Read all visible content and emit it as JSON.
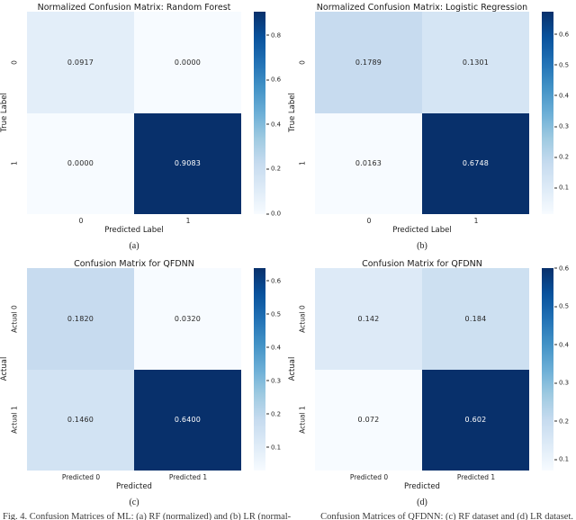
{
  "figure": {
    "bottom_caption_left": "Fig. 4. Confusion Matrices of ML: (a) RF (normalized) and (b) LR (normal-",
    "bottom_caption_right": "Confusion Matrices of QFDNN: (c) RF dataset and (d) LR dataset."
  },
  "colors": {
    "background": "#ffffff",
    "cmap_name": "Blues",
    "cmap_stops": [
      [
        0.0,
        "#f7fbff"
      ],
      [
        0.125,
        "#deebf7"
      ],
      [
        0.25,
        "#c6dbef"
      ],
      [
        0.375,
        "#9ecae1"
      ],
      [
        0.5,
        "#6baed6"
      ],
      [
        0.625,
        "#4292c6"
      ],
      [
        0.75,
        "#2171b5"
      ],
      [
        0.875,
        "#08519c"
      ],
      [
        1.0,
        "#08306b"
      ]
    ],
    "annotation_dark": "#262626",
    "annotation_light": "#ffffff"
  },
  "chart_data": [
    {
      "type": "heatmap",
      "title": "Normalized Confusion Matrix: Random Forest",
      "xlabel": "Predicted Label",
      "ylabel": "True Label",
      "x_ticklabels": [
        "0",
        "1"
      ],
      "y_ticklabels": [
        "0",
        "1"
      ],
      "values": [
        [
          0.0917,
          0.0
        ],
        [
          0.0,
          0.9083
        ]
      ],
      "cell_labels": [
        [
          "0.0917",
          "0.0000"
        ],
        [
          "0.0000",
          "0.9083"
        ]
      ],
      "vmin": 0.0,
      "vmax": 0.9083,
      "colorbar_ticks": [
        0.0,
        0.2,
        0.4,
        0.6,
        0.8
      ],
      "caption": "(a)"
    },
    {
      "type": "heatmap",
      "title": "Normalized Confusion Matrix: Logistic Regression",
      "xlabel": "Predicted Label",
      "ylabel": "True Label",
      "x_ticklabels": [
        "0",
        "1"
      ],
      "y_ticklabels": [
        "0",
        "1"
      ],
      "values": [
        [
          0.1789,
          0.1301
        ],
        [
          0.0163,
          0.6748
        ]
      ],
      "cell_labels": [
        [
          "0.1789",
          "0.1301"
        ],
        [
          "0.0163",
          "0.6748"
        ]
      ],
      "vmin": 0.0163,
      "vmax": 0.6748,
      "colorbar_ticks": [
        0.1,
        0.2,
        0.3,
        0.4,
        0.5,
        0.6
      ],
      "caption": "(b)"
    },
    {
      "type": "heatmap",
      "title": "Confusion Matrix for QFDNN",
      "xlabel": "Predicted",
      "ylabel": "Actual",
      "x_ticklabels": [
        "Predicted 0",
        "Predicted 1"
      ],
      "y_ticklabels": [
        "Actual 0",
        "Actual 1"
      ],
      "values": [
        [
          0.182,
          0.032
        ],
        [
          0.146,
          0.64
        ]
      ],
      "cell_labels": [
        [
          "0.1820",
          "0.0320"
        ],
        [
          "0.1460",
          "0.6400"
        ]
      ],
      "vmin": 0.032,
      "vmax": 0.64,
      "colorbar_ticks": [
        0.1,
        0.2,
        0.3,
        0.4,
        0.5,
        0.6
      ],
      "caption": "(c)"
    },
    {
      "type": "heatmap",
      "title": "Confusion Matrix for QFDNN",
      "xlabel": "Predicted",
      "ylabel": "Actual",
      "x_ticklabels": [
        "Predicted 0",
        "Predicted 1"
      ],
      "y_ticklabels": [
        "Actual 0",
        "Actual 1"
      ],
      "values": [
        [
          0.142,
          0.184
        ],
        [
          0.072,
          0.602
        ]
      ],
      "cell_labels": [
        [
          "0.142",
          "0.184"
        ],
        [
          "0.072",
          "0.602"
        ]
      ],
      "vmin": 0.072,
      "vmax": 0.602,
      "colorbar_ticks": [
        0.1,
        0.2,
        0.3,
        0.4,
        0.5,
        0.6
      ],
      "caption": "(d)"
    }
  ]
}
